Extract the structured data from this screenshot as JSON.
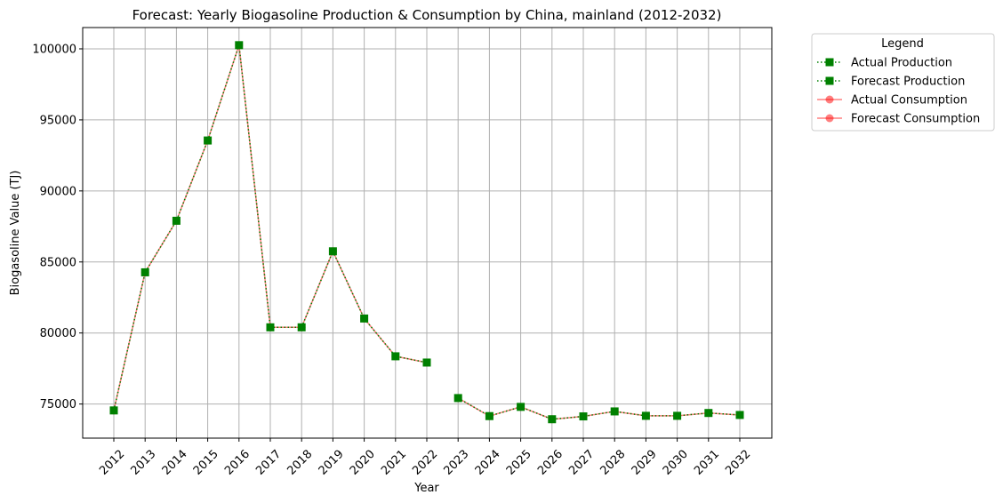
{
  "chart_data": {
    "type": "line",
    "title": "Forecast: Yearly Biogasoline Production & Consumption by China, mainland (2012-2032)",
    "xlabel": "Year",
    "ylabel": "Biogasoline Value (TJ)",
    "x": [
      "2012",
      "2013",
      "2014",
      "2015",
      "2016",
      "2017",
      "2018",
      "2019",
      "2020",
      "2021",
      "2022",
      "2023",
      "2024",
      "2025",
      "2026",
      "2027",
      "2028",
      "2029",
      "2030",
      "2031",
      "2032"
    ],
    "ylim": [
      72600,
      101500
    ],
    "yticks": [
      75000,
      80000,
      85000,
      90000,
      95000,
      100000
    ],
    "grid": true,
    "legend_title": "Legend",
    "legend_position": "outside-top-right",
    "series": [
      {
        "name": "Actual Production",
        "x": [
          "2012",
          "2013",
          "2014",
          "2015",
          "2016",
          "2017",
          "2018",
          "2019",
          "2020",
          "2021",
          "2022"
        ],
        "values": [
          74550,
          84270,
          87900,
          93550,
          100260,
          80400,
          80400,
          85750,
          81020,
          78360,
          77920
        ],
        "color": "#008000",
        "linestyle": "dotted",
        "marker": "square"
      },
      {
        "name": "Forecast Production",
        "x": [
          "2023",
          "2024",
          "2025",
          "2026",
          "2027",
          "2028",
          "2029",
          "2030",
          "2031",
          "2032"
        ],
        "values": [
          75420,
          74150,
          74800,
          73930,
          74130,
          74480,
          74170,
          74170,
          74370,
          74230
        ],
        "color": "#008000",
        "linestyle": "dotted",
        "marker": "square"
      },
      {
        "name": "Actual Consumption",
        "x": [
          "2012",
          "2013",
          "2014",
          "2015",
          "2016",
          "2017",
          "2018",
          "2019",
          "2020",
          "2021",
          "2022"
        ],
        "values": [
          74550,
          84270,
          87900,
          93550,
          100260,
          80400,
          80400,
          85750,
          81020,
          78360,
          77920
        ],
        "color": "#ff0000",
        "linestyle": "solid",
        "marker": "circle",
        "alpha": 0.5
      },
      {
        "name": "Forecast Consumption",
        "x": [
          "2023",
          "2024",
          "2025",
          "2026",
          "2027",
          "2028",
          "2029",
          "2030",
          "2031",
          "2032"
        ],
        "values": [
          75420,
          74150,
          74800,
          73930,
          74130,
          74480,
          74170,
          74170,
          74370,
          74230
        ],
        "color": "#ff0000",
        "linestyle": "solid",
        "marker": "circle",
        "alpha": 0.5
      }
    ]
  }
}
